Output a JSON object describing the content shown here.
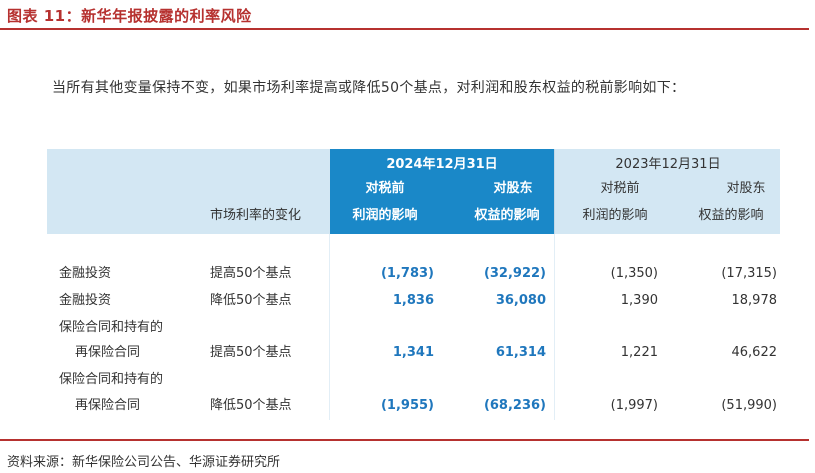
{
  "figure_title": "图表 11：新华年报披露的利率风险",
  "intro_text": "当所有其他变量保持不变，如果市场利率提高或降低50个基点，对利润和股东权益的税前影响如下：",
  "table": {
    "header_change": "市场利率的变化",
    "period_2024": "2024年12月31日",
    "period_2023": "2023年12月31日",
    "col_profit_line1": "对税前",
    "col_profit_line2": "利润的影响",
    "col_equity_line1": "对股东",
    "col_equity_line2": "权益的影响",
    "rows": [
      {
        "item1": "金融投资",
        "item2": "",
        "change": "提高50个基点",
        "p2024": "(1,783)",
        "e2024": "(32,922)",
        "p2023": "(1,350)",
        "e2023": "(17,315)"
      },
      {
        "item1": "金融投资",
        "item2": "",
        "change": "降低50个基点",
        "p2024": "1,836",
        "e2024": "36,080",
        "p2023": "1,390",
        "e2023": "18,978"
      },
      {
        "item1": "保险合同和持有的",
        "item2": "再保险合同",
        "change": "提高50个基点",
        "p2024": "1,341",
        "e2024": "61,314",
        "p2023": "1,221",
        "e2023": "46,622"
      },
      {
        "item1": "保险合同和持有的",
        "item2": "再保险合同",
        "change": "降低50个基点",
        "p2024": "(1,955)",
        "e2024": "(68,236)",
        "p2023": "(1,997)",
        "e2023": "(51,990)"
      }
    ]
  },
  "source_text": "资料来源：新华保险公司公告、华源证券研究所",
  "colors": {
    "accent_red": "#b6312f",
    "header_blue": "#1a88c8",
    "header_light": "#d3e7f3",
    "value_blue": "#1f77bd"
  }
}
